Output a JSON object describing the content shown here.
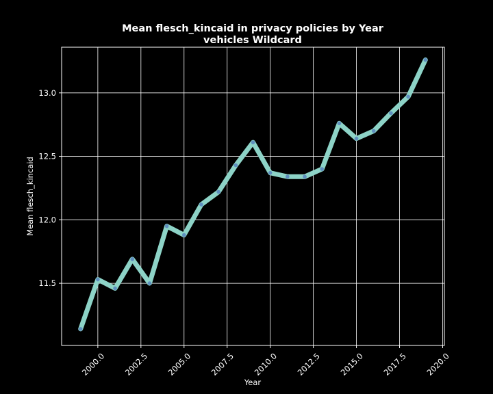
{
  "chart_data": {
    "type": "line",
    "title": "Mean flesch_kincaid in privacy policies by Year",
    "subtitle": "vehicles Wildcard",
    "xlabel": "Year",
    "ylabel": "Mean flesch_kincaid",
    "xlim": [
      1997.9,
      2020.1
    ],
    "ylim": [
      11.01,
      13.36
    ],
    "x_ticks": [
      "2000.0",
      "2002.5",
      "2005.0",
      "2007.5",
      "2010.0",
      "2012.5",
      "2015.0",
      "2017.5",
      "2020.0"
    ],
    "x_tick_values": [
      2000,
      2002.5,
      2005,
      2007.5,
      2010,
      2012.5,
      2015,
      2017.5,
      2020
    ],
    "y_ticks": [
      "11.5",
      "12.0",
      "12.5",
      "13.0"
    ],
    "y_tick_values": [
      11.5,
      12.0,
      12.5,
      13.0
    ],
    "grid": true,
    "series": [
      {
        "x": [
          1999,
          2000,
          2001,
          2002,
          2003,
          2004,
          2005,
          2006,
          2007,
          2008,
          2009,
          2010,
          2011,
          2012,
          2013,
          2014,
          2015,
          2016,
          2017,
          2018,
          2019
        ],
        "values": [
          11.14,
          11.53,
          11.46,
          11.69,
          11.5,
          11.95,
          11.88,
          12.12,
          12.22,
          12.43,
          12.61,
          12.37,
          12.34,
          12.34,
          12.4,
          12.76,
          12.64,
          12.7,
          12.84,
          12.97,
          13.26
        ]
      }
    ],
    "colors": {
      "background": "#000000",
      "line": "#8dd3c7",
      "marker": "#5f8fbf",
      "grid": "#ffffff",
      "text": "#ffffff"
    }
  }
}
